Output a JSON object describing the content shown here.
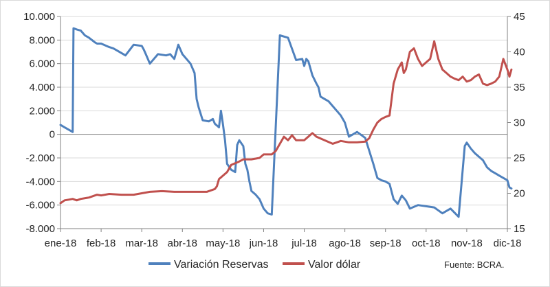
{
  "chart_data": {
    "type": "line",
    "title": "",
    "source": "Fuente: BCRA.",
    "x_tick_labels": [
      "ene-18",
      "feb-18",
      "mar-18",
      "abr-18",
      "may-18",
      "jun-18",
      "jul-18",
      "ago-18",
      "sep-18",
      "oct-18",
      "nov-18",
      "dic-18"
    ],
    "y_left": {
      "label": "",
      "ylim": [
        -8000,
        10000
      ],
      "ticks": [
        -8000,
        -6000,
        -4000,
        -2000,
        0,
        2000,
        4000,
        6000,
        8000,
        10000
      ],
      "tick_labels": [
        "-8.000",
        "-6.000",
        "-4.000",
        "-2.000",
        "0",
        "2.000",
        "4.000",
        "6.000",
        "8.000",
        "10.000"
      ]
    },
    "y_right": {
      "label": "",
      "ylim": [
        15,
        45
      ],
      "ticks": [
        15,
        20,
        25,
        30,
        35,
        40,
        45
      ],
      "tick_labels": [
        "15",
        "20",
        "25",
        "30",
        "35",
        "40",
        "45"
      ]
    },
    "grid": true,
    "legend_position": "bottom",
    "series": [
      {
        "name": "Variación Reservas",
        "axis": "left",
        "color": "#4f81bd",
        "x": [
          0,
          0.1,
          0.2,
          0.3,
          0.32,
          0.4,
          0.5,
          0.6,
          0.7,
          0.85,
          0.9,
          1.0,
          1.2,
          1.3,
          1.4,
          1.6,
          1.8,
          2.0,
          2.05,
          2.1,
          2.2,
          2.4,
          2.6,
          2.7,
          2.8,
          2.9,
          3.0,
          3.2,
          3.3,
          3.35,
          3.4,
          3.5,
          3.65,
          3.75,
          3.8,
          3.9,
          3.95,
          4.0,
          4.05,
          4.1,
          4.2,
          4.3,
          4.35,
          4.4,
          4.5,
          4.55,
          4.6,
          4.65,
          4.7,
          4.8,
          4.9,
          5.0,
          5.1,
          5.2,
          5.4,
          5.6,
          5.8,
          5.95,
          6.0,
          6.05,
          6.1,
          6.2,
          6.3,
          6.35,
          6.4,
          6.5,
          6.6,
          6.7,
          6.8,
          6.9,
          7.0,
          7.1,
          7.3,
          7.5,
          7.7,
          7.8,
          7.9,
          8.0,
          8.1,
          8.2,
          8.3,
          8.4,
          8.5,
          8.6,
          8.8,
          9.0,
          9.2,
          9.4,
          9.6,
          9.8,
          9.95,
          10.0,
          10.1,
          10.2,
          10.3,
          10.4,
          10.5,
          10.6,
          10.7,
          10.8,
          10.9,
          11.0,
          11.05,
          11.1
        ],
        "values": [
          800,
          600,
          400,
          200,
          9000,
          8900,
          8800,
          8400,
          8200,
          7800,
          7700,
          7700,
          7400,
          7300,
          7100,
          6700,
          7600,
          7500,
          7200,
          6800,
          6000,
          6800,
          6700,
          6800,
          6400,
          7600,
          6800,
          6000,
          5200,
          3000,
          2300,
          1200,
          1100,
          1300,
          900,
          600,
          2000,
          800,
          -500,
          -2500,
          -3000,
          -3200,
          -900,
          -500,
          -1000,
          -2500,
          -3000,
          -4000,
          -4800,
          -5100,
          -5500,
          -6300,
          -6700,
          -6800,
          8400,
          8200,
          6300,
          6400,
          5800,
          6400,
          6200,
          5000,
          4300,
          4000,
          3200,
          3000,
          2800,
          2400,
          2000,
          1600,
          1000,
          -200,
          200,
          -300,
          -2500,
          -3700,
          -3900,
          -4000,
          -4200,
          -5500,
          -5900,
          -5200,
          -5600,
          -6300,
          -6000,
          -6100,
          -6200,
          -6700,
          -6300,
          -7000,
          -1000,
          -700,
          -1200,
          -1600,
          -1900,
          -2200,
          -2800,
          -3100,
          -3300,
          -3500,
          -3700,
          -3900,
          -4500,
          -4600
        ]
      },
      {
        "name": "Valor dólar",
        "axis": "right",
        "color": "#c0504d",
        "x": [
          0,
          0.1,
          0.2,
          0.3,
          0.4,
          0.5,
          0.7,
          0.9,
          1.0,
          1.2,
          1.5,
          1.8,
          2.0,
          2.2,
          2.5,
          2.8,
          3.0,
          3.3,
          3.6,
          3.8,
          3.85,
          3.9,
          4.0,
          4.1,
          4.2,
          4.4,
          4.5,
          4.7,
          4.9,
          5.0,
          5.1,
          5.2,
          5.3,
          5.4,
          5.5,
          5.6,
          5.7,
          5.8,
          5.9,
          6.0,
          6.2,
          6.3,
          6.5,
          6.7,
          6.9,
          7.1,
          7.3,
          7.5,
          7.6,
          7.7,
          7.8,
          7.9,
          8.0,
          8.1,
          8.2,
          8.3,
          8.4,
          8.45,
          8.5,
          8.6,
          8.7,
          8.8,
          8.9,
          9.0,
          9.1,
          9.2,
          9.3,
          9.4,
          9.5,
          9.6,
          9.7,
          9.8,
          9.9,
          10.0,
          10.1,
          10.2,
          10.3,
          10.4,
          10.5,
          10.6,
          10.7,
          10.8,
          10.9,
          11.0,
          11.05,
          11.1
        ],
        "values": [
          18.6,
          19.0,
          19.1,
          19.2,
          19.0,
          19.2,
          19.4,
          19.8,
          19.7,
          19.9,
          19.8,
          19.8,
          20.0,
          20.2,
          20.3,
          20.2,
          20.2,
          20.2,
          20.2,
          20.6,
          21.0,
          22.0,
          22.5,
          23.0,
          24.0,
          24.5,
          24.8,
          24.8,
          25.0,
          25.5,
          25.5,
          25.5,
          26.0,
          27.0,
          28.0,
          27.5,
          28.2,
          27.5,
          27.5,
          27.5,
          28.5,
          28.0,
          27.5,
          27.0,
          27.4,
          27.2,
          27.2,
          27.3,
          27.8,
          29.0,
          30.0,
          30.5,
          30.8,
          31.0,
          35.5,
          37.5,
          38.5,
          37.0,
          37.5,
          40.0,
          40.5,
          39.0,
          38.0,
          38.5,
          39.0,
          41.5,
          39.0,
          37.5,
          37.0,
          36.5,
          36.2,
          36.0,
          36.5,
          35.8,
          36.0,
          36.5,
          36.8,
          35.5,
          35.3,
          35.5,
          35.8,
          36.5,
          39.0,
          37.5,
          36.5,
          37.5
        ]
      }
    ]
  }
}
